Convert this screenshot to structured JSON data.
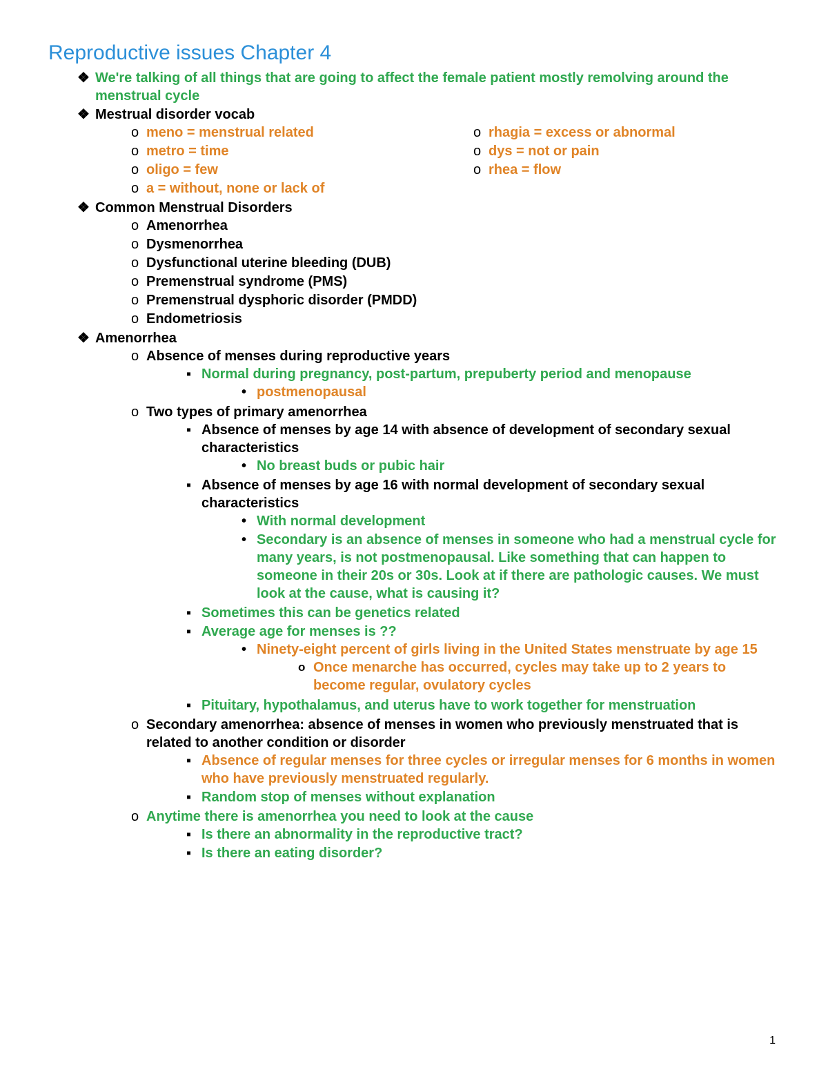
{
  "colors": {
    "title": "#2b8fd8",
    "green": "#2fa84f",
    "orange": "#e08427",
    "black": "#000000",
    "background": "#ffffff"
  },
  "title": "Reproductive issues Chapter 4",
  "page_number": "1",
  "section1_intro": "We're talking of all things that are going to affect the female patient mostly remolving around the menstrual cycle",
  "section2_head": "Mestrual disorder vocab",
  "vocab_left": [
    "meno = menstrual related",
    "metro = time",
    "oligo = few",
    "a = without, none or lack of"
  ],
  "vocab_right": [
    "rhagia = excess or abnormal",
    "dys = not or pain",
    "rhea = flow"
  ],
  "section3_head": "Common Menstrual Disorders",
  "disorders": [
    "Amenorrhea",
    "Dysmenorrhea",
    "Dysfunctional uterine bleeding (DUB)",
    "Premenstrual syndrome (PMS)",
    "Premenstrual dysphoric disorder (PMDD)",
    "Endometriosis"
  ],
  "section4_head": "Amenorrhea",
  "amen": {
    "o1": "Absence of menses during reproductive years",
    "o1_s1": "Normal during pregnancy, post-partum, prepuberty period and menopause",
    "o1_s1_d1": "postmenopausal",
    "o2": "Two types of primary amenorrhea",
    "o2_s1": "Absence of menses by age 14 with absence of development of secondary sexual characteristics",
    "o2_s1_d1": "No breast buds or pubic hair",
    "o2_s2": "Absence of menses by age 16 with normal development of secondary sexual characteristics",
    "o2_s2_d1": "With normal development",
    "o2_s2_d2": "Secondary is an absence of menses in someone who had a menstrual cycle for many years, is not postmenopausal. Like something that can happen to someone in their 20s or 30s. Look at if there are pathologic causes. We must look at the cause, what is causing it?",
    "o2_s3": "Sometimes this can be genetics related",
    "o2_s4": "Average age for menses is ??",
    "o2_s4_d1": "Ninety-eight percent of girls living in the United States menstruate by age 15",
    "o2_s4_d1_e1": "Once menarche has occurred, cycles may take up to 2 years to become regular, ovulatory cycles",
    "o2_s5": "Pituitary, hypothalamus, and uterus have to work together for menstruation",
    "o3": "Secondary amenorrhea: absence of menses in women who previously menstruated that is related to another condition or disorder",
    "o3_s1": "Absence of regular menses for three cycles or irregular menses for 6 months in women who have previously menstruated regularly.",
    "o3_s2": "Random stop of menses without explanation",
    "o4": "Anytime there is amenorrhea you need to look at the cause",
    "o4_s1": "Is there an abnormality in the reproductive tract?",
    "o4_s2": "Is there an eating disorder?"
  }
}
